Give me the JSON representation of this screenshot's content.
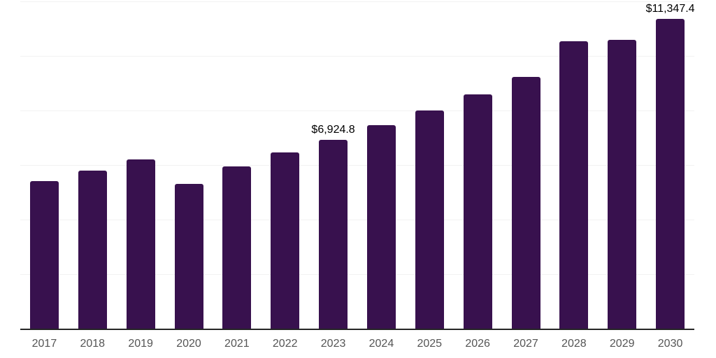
{
  "chart_data": {
    "type": "bar",
    "title": "",
    "xlabel": "",
    "ylabel": "",
    "categories": [
      "2017",
      "2018",
      "2019",
      "2020",
      "2021",
      "2022",
      "2023",
      "2024",
      "2025",
      "2026",
      "2027",
      "2028",
      "2029",
      "2030"
    ],
    "values": [
      5420,
      5800,
      6200,
      5300,
      5950,
      6460,
      6924.8,
      7450,
      8000,
      8590,
      9220,
      10540,
      10590,
      11347.4
    ],
    "value_labels": [
      "",
      "",
      "",
      "",
      "",
      "",
      "$6,924.8",
      "",
      "",
      "",
      "",
      "",
      "",
      "$11,347.4"
    ],
    "ylim": [
      0,
      12000
    ],
    "grid_step": 2000,
    "grid": "horizontal-only",
    "y_axis_labels_shown": false,
    "legend": "none",
    "colors": {
      "bar": "#38114E",
      "axis_line": "#262626",
      "gridline": "#f2f2f2",
      "tick_label": "#555555",
      "data_label": "#000000",
      "background": "#ffffff"
    }
  }
}
